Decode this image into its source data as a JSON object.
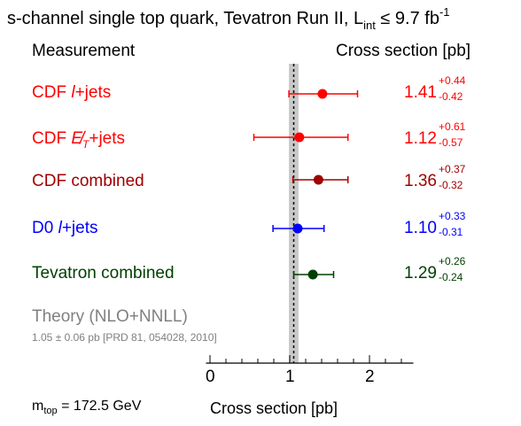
{
  "chart_data": {
    "type": "scatter",
    "title_parts": {
      "main": "s-channel single top quark, Tevatron Run II, L",
      "sub": "int",
      "rest": " ≤ 9.7 fb",
      "sup": "-1"
    },
    "col_left_header": "Measurement",
    "col_right_header": "Cross section [pb]",
    "xlabel": "Cross section [pb]",
    "xlim": [
      -0.05,
      2.55
    ],
    "xticks": [
      0,
      1,
      2
    ],
    "xtick_labels": [
      "0",
      "1",
      "2"
    ],
    "theory": {
      "label": "Theory (NLO+NNLL)",
      "detail": "1.05 ± 0.06 pb [PRD 81, 054028, 2010]",
      "value": 1.05,
      "uncertainty": 0.06,
      "band_color": "#c8c8c8"
    },
    "measurements": [
      {
        "label_a": "CDF ",
        "label_b": "l",
        "label_c": "+jets",
        "value": 1.41,
        "value_text": "1.41",
        "err_up": 0.44,
        "err_down": 0.42,
        "up_text": "+0.44",
        "down_text": "-0.42",
        "color": "#ff0000"
      },
      {
        "label_a": "CDF ",
        "label_b": "E̸",
        "label_sub": "T",
        "label_c": "+jets",
        "value": 1.12,
        "value_text": "1.12",
        "err_up": 0.61,
        "err_down": 0.57,
        "up_text": "+0.61",
        "down_text": "-0.57",
        "color": "#ff0000"
      },
      {
        "label_a": "CDF combined",
        "value": 1.36,
        "value_text": "1.36",
        "err_up": 0.37,
        "err_down": 0.32,
        "up_text": "+0.37",
        "down_text": "-0.32",
        "color": "#a00000"
      },
      {
        "label_a": "D0 ",
        "label_b": "l",
        "label_c": "+jets",
        "value": 1.1,
        "value_text": "1.10",
        "err_up": 0.33,
        "err_down": 0.31,
        "up_text": "+0.33",
        "down_text": "-0.31",
        "color": "#0000ff"
      },
      {
        "label_a": "Tevatron combined",
        "value": 1.29,
        "value_text": "1.29",
        "err_up": 0.26,
        "err_down": 0.24,
        "up_text": "+0.26",
        "down_text": "-0.24",
        "color": "#004000"
      }
    ],
    "mtop_parts": {
      "main": "m",
      "sub": "top",
      "rest": " = 172.5 GeV"
    }
  }
}
